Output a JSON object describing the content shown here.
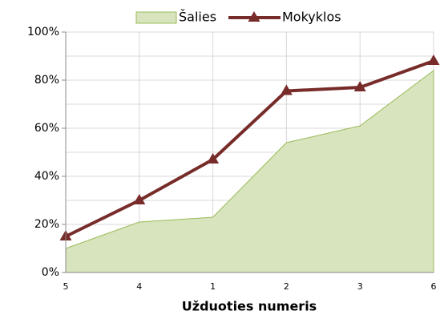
{
  "chart_data": {
    "type": "area_line",
    "categories": [
      "5",
      "4",
      "1",
      "2",
      "3",
      "6"
    ],
    "series": [
      {
        "name": "Šalies",
        "type": "area",
        "color": "#d7e4bd",
        "edge": "#9bbb59",
        "values": [
          10,
          21,
          23,
          54,
          61,
          84
        ]
      },
      {
        "name": "Mokyklos",
        "type": "line",
        "color": "#772c2a",
        "marker": "triangle",
        "values": [
          15,
          30,
          47,
          75.5,
          77,
          88
        ]
      }
    ],
    "x_label": "Užduoties numeris",
    "ylim": [
      0,
      100
    ],
    "yticks": [
      {
        "value": 0,
        "label": "0%"
      },
      {
        "value": 20,
        "label": "20%"
      },
      {
        "value": 40,
        "label": "40%"
      },
      {
        "value": 60,
        "label": "60%"
      },
      {
        "value": 80,
        "label": "80%"
      },
      {
        "value": 100,
        "label": "100%"
      }
    ],
    "yminor": [
      10,
      30,
      50,
      70,
      90
    ],
    "grid": true,
    "legend": "top"
  }
}
